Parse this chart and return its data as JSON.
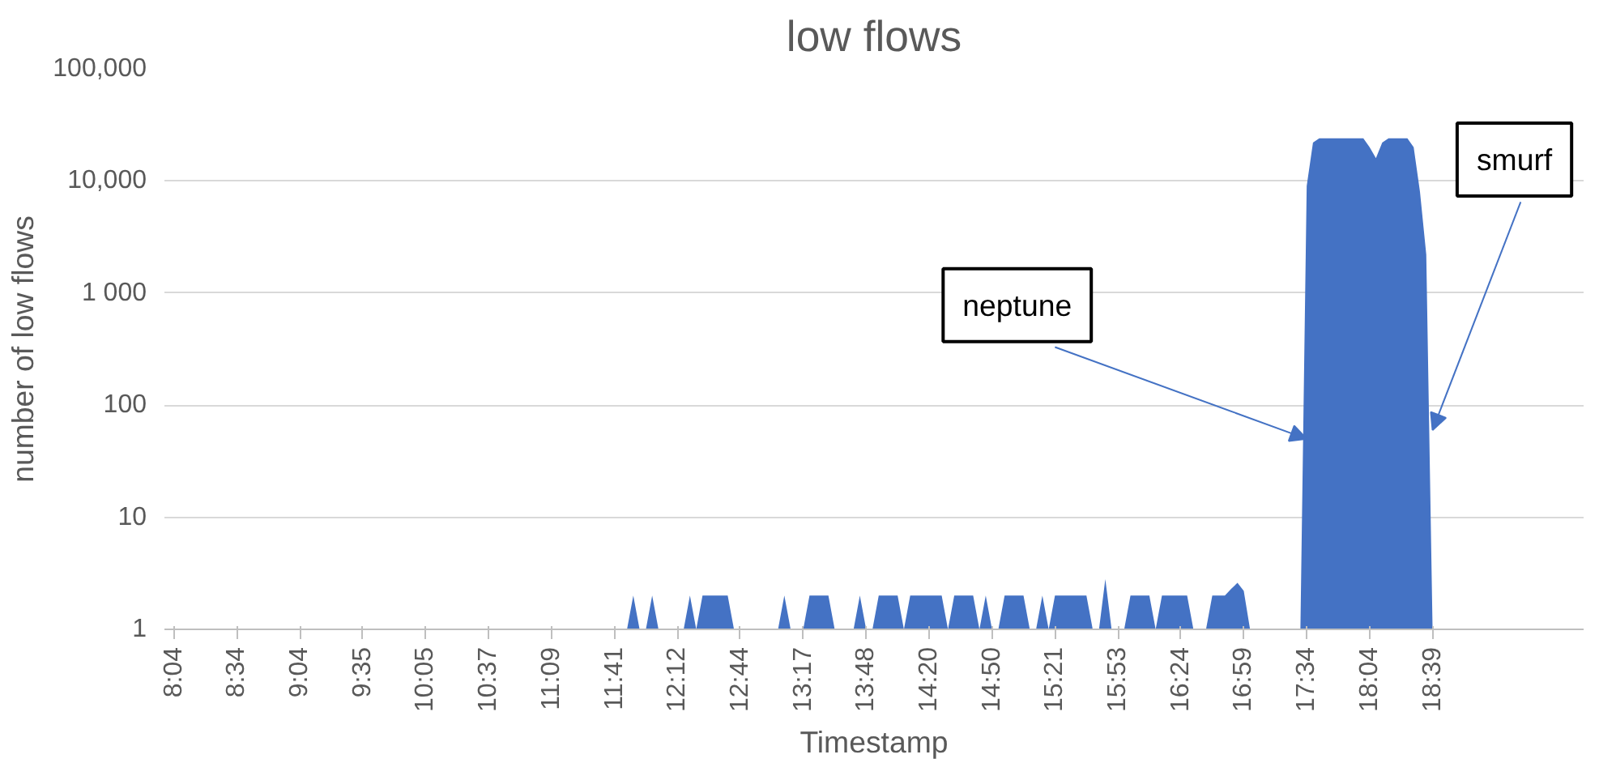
{
  "chart_data": {
    "type": "area",
    "title": "low flows",
    "xlabel": "Timestamp",
    "ylabel": "number of low flows",
    "log": "y",
    "grid": "y",
    "ylim": [
      1,
      100000
    ],
    "yticks": [
      1,
      10,
      100,
      {
        "value": 1000,
        "label": "1 000"
      },
      {
        "value": 10000,
        "label": "10,000"
      },
      {
        "value": 100000,
        "label": "100,000"
      }
    ],
    "categories": [
      "8:04",
      null,
      null,
      null,
      null,
      null,
      null,
      null,
      null,
      null,
      "8:34",
      null,
      null,
      null,
      null,
      null,
      null,
      null,
      null,
      null,
      "9:04",
      null,
      null,
      null,
      null,
      null,
      null,
      null,
      null,
      null,
      "9:35",
      null,
      null,
      null,
      null,
      null,
      null,
      null,
      null,
      null,
      "10:05",
      null,
      null,
      null,
      null,
      null,
      null,
      null,
      null,
      null,
      "10:37",
      null,
      null,
      null,
      null,
      null,
      null,
      null,
      null,
      null,
      "11:09",
      null,
      null,
      null,
      null,
      null,
      null,
      null,
      null,
      null,
      "11:41",
      null,
      null,
      null,
      null,
      null,
      null,
      null,
      null,
      null,
      "12:12",
      null,
      null,
      null,
      null,
      null,
      null,
      null,
      null,
      null,
      "12:44",
      null,
      null,
      null,
      null,
      null,
      null,
      null,
      null,
      null,
      "13:17",
      null,
      null,
      null,
      null,
      null,
      null,
      null,
      null,
      null,
      "13:48",
      null,
      null,
      null,
      null,
      null,
      null,
      null,
      null,
      null,
      "14:20",
      null,
      null,
      null,
      null,
      null,
      null,
      null,
      null,
      null,
      "14:50",
      null,
      null,
      null,
      null,
      null,
      null,
      null,
      null,
      null,
      "15:21",
      null,
      null,
      null,
      null,
      null,
      null,
      null,
      null,
      null,
      "15:53",
      null,
      null,
      null,
      null,
      null,
      null,
      null,
      null,
      null,
      "16:24",
      null,
      null,
      null,
      null,
      null,
      null,
      null,
      null,
      null,
      "16:59",
      null,
      null,
      null,
      null,
      null,
      null,
      null,
      null,
      null,
      "17:34",
      null,
      null,
      null,
      null,
      null,
      null,
      null,
      null,
      null,
      "18:04",
      null,
      null,
      null,
      null,
      null,
      null,
      null,
      null,
      null,
      "18:39"
    ],
    "series": [
      {
        "color": "#4472c4",
        "values": [
          1,
          1,
          1,
          1,
          1,
          1,
          1,
          1,
          1,
          1,
          1,
          1,
          1,
          1,
          1,
          1,
          1,
          1,
          1,
          1,
          1,
          1,
          1,
          1,
          1,
          1,
          1,
          1,
          1,
          1,
          1,
          1,
          1,
          1,
          1,
          1,
          1,
          1,
          1,
          1,
          1,
          1,
          1,
          1,
          1,
          1,
          1,
          1,
          1,
          1,
          1,
          1,
          1,
          1,
          1,
          1,
          1,
          1,
          1,
          1,
          1,
          1,
          1,
          1,
          1,
          1,
          1,
          1,
          1,
          1,
          1,
          1,
          1,
          2,
          1,
          1,
          2,
          1,
          1,
          1,
          1,
          1,
          2,
          1,
          2,
          2,
          2,
          2,
          2,
          1,
          1,
          1,
          1,
          1,
          1,
          1,
          1,
          2,
          1,
          1,
          1,
          2,
          2,
          2,
          2,
          1,
          1,
          1,
          1,
          2,
          1,
          1,
          2,
          2,
          2,
          2,
          1,
          2,
          2,
          2,
          2,
          2,
          2,
          1,
          2,
          2,
          2,
          2,
          1,
          2,
          1,
          1,
          2,
          2,
          2,
          2,
          1,
          1,
          2,
          1,
          2,
          2,
          2,
          2,
          2,
          2,
          1,
          1,
          2.8,
          1,
          1,
          1,
          2,
          2,
          2,
          2,
          1,
          2,
          2,
          2,
          2,
          2,
          1,
          1,
          1,
          2,
          2,
          2,
          2.3,
          2.6,
          2.2,
          1,
          1,
          1,
          1,
          1,
          1,
          1,
          1,
          1,
          9000,
          22000,
          24000,
          24000,
          24000,
          24000,
          24000,
          24000,
          24000,
          24000,
          20000,
          16000,
          22000,
          24000,
          24000,
          24000,
          24000,
          20000,
          8000,
          2200,
          1
        ]
      }
    ],
    "annotations": [
      {
        "text": "neptune",
        "x": "17:34",
        "y": 50
      },
      {
        "text": "smurf",
        "x": "18:39",
        "y": 60
      }
    ]
  }
}
